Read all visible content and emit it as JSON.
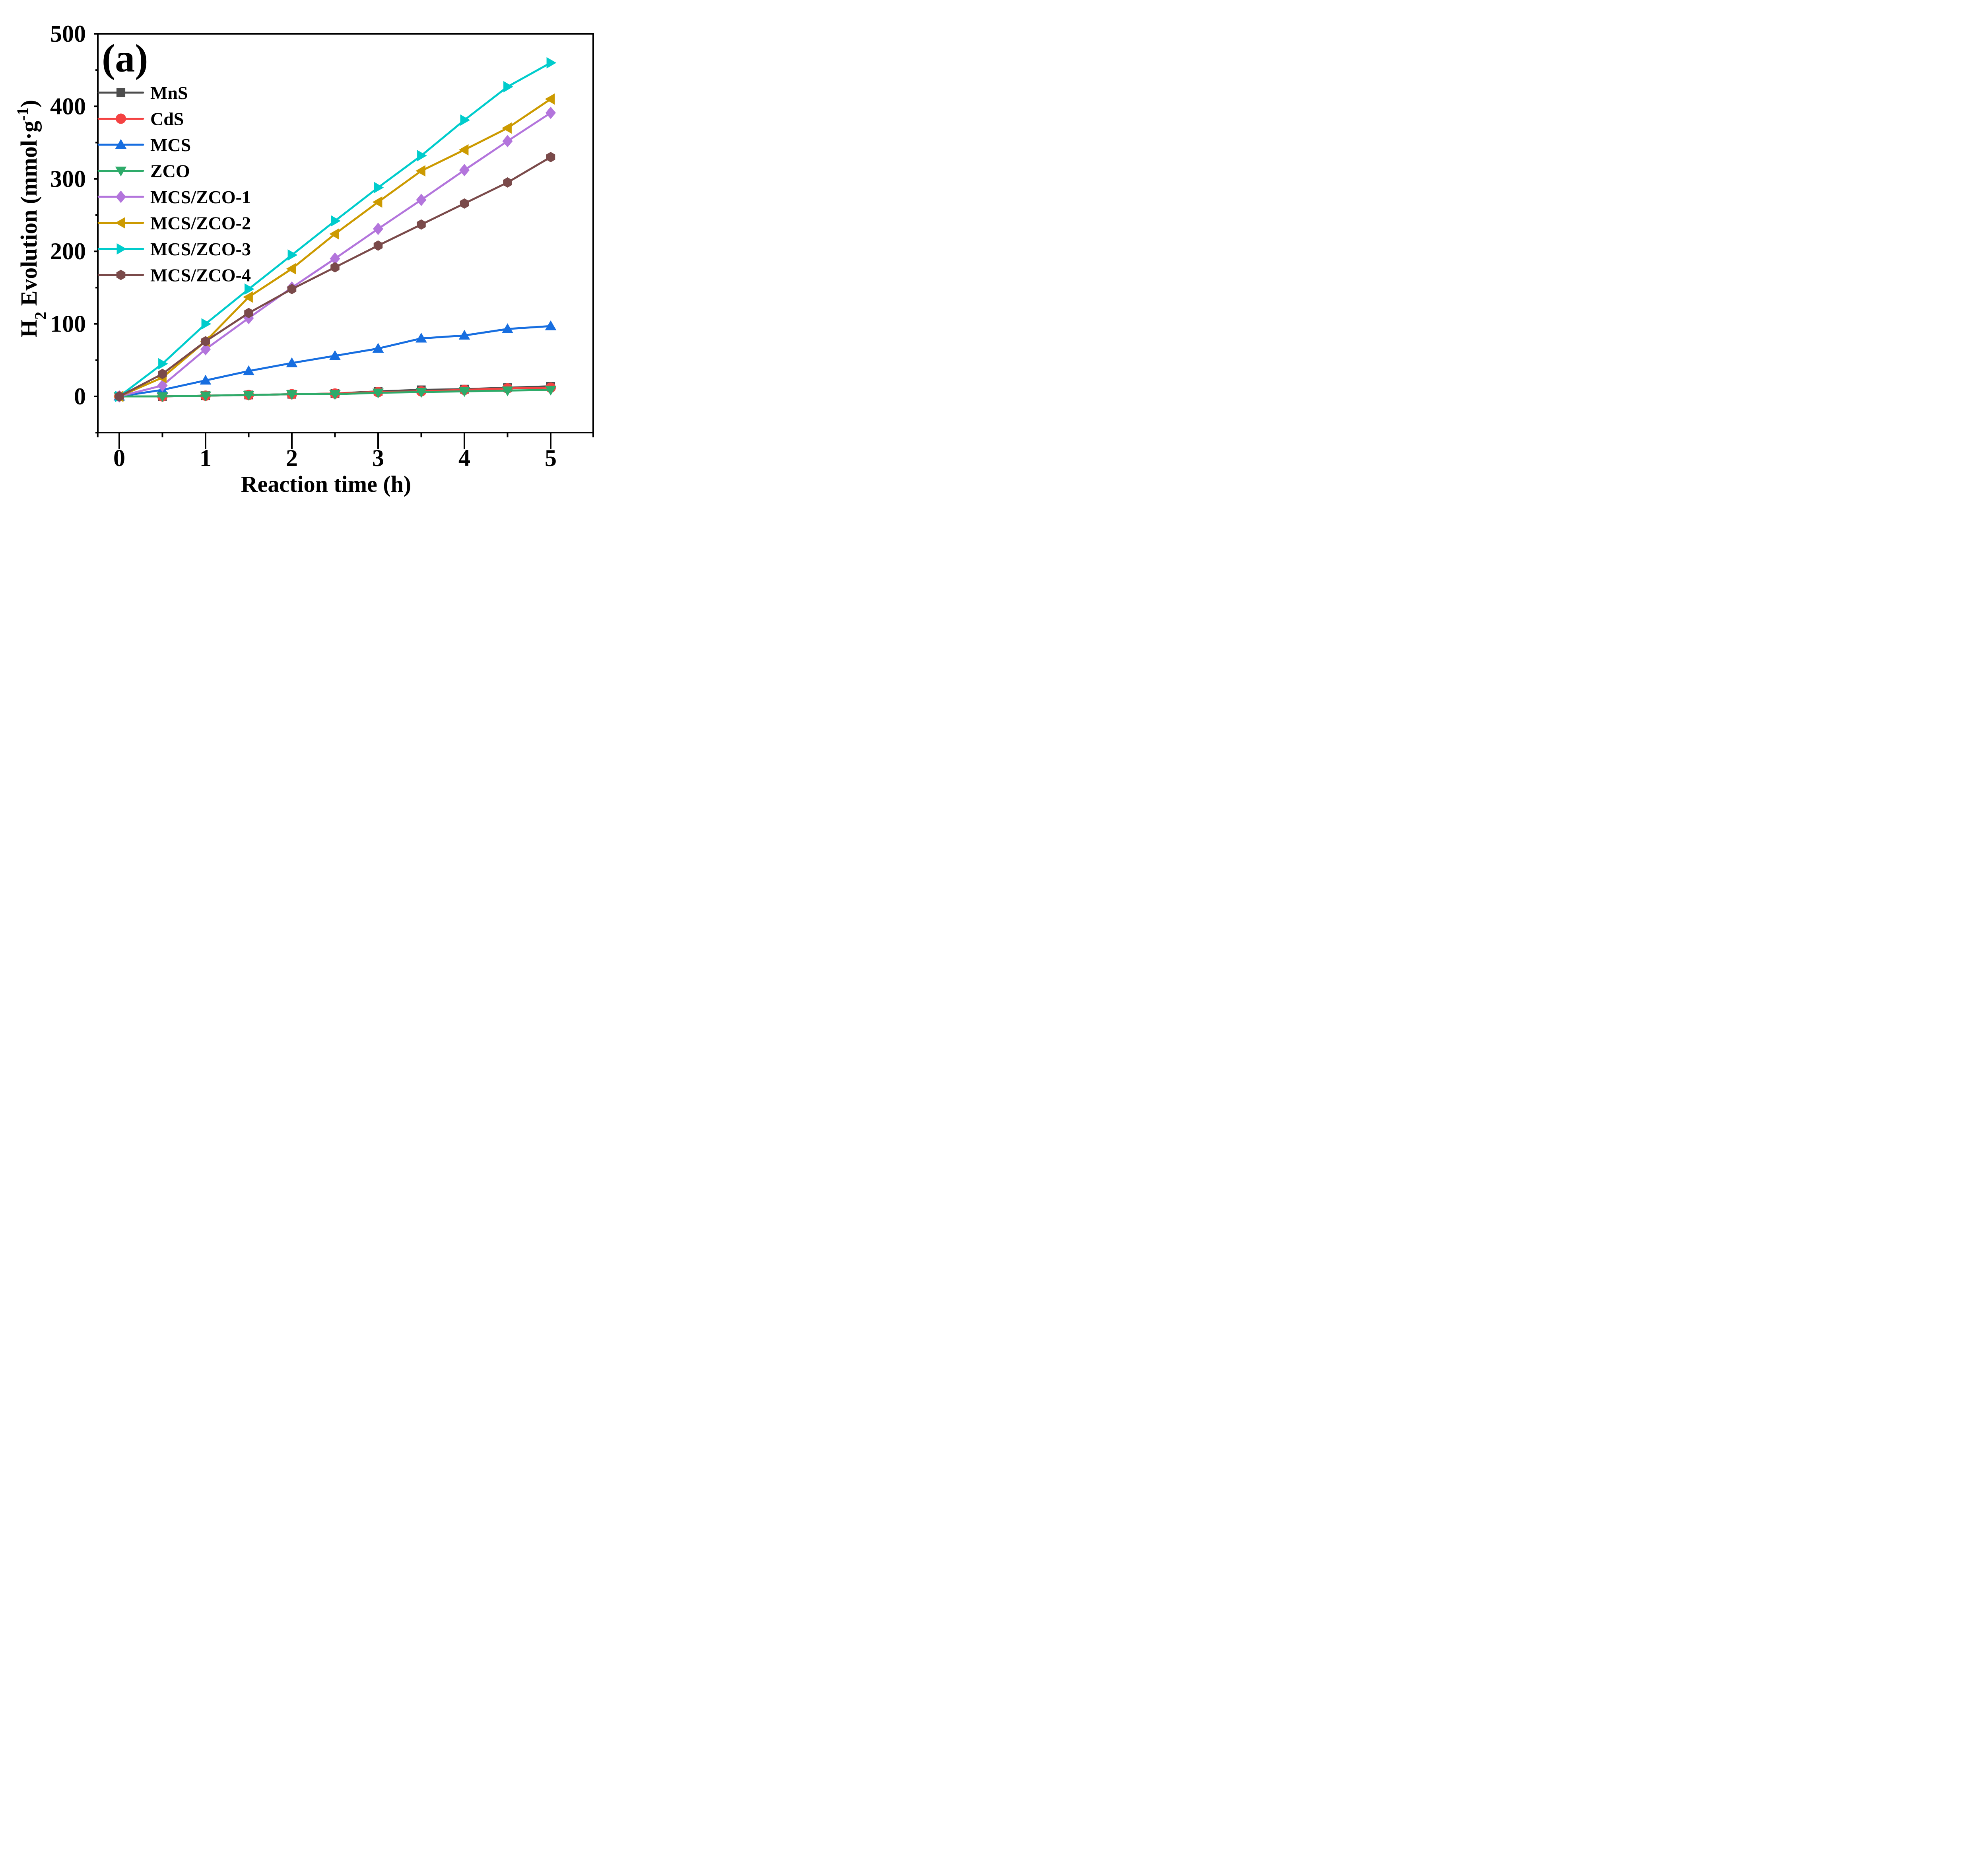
{
  "chart_data": {
    "type": "line",
    "title": "",
    "panel_label": "(a)",
    "xlabel": "Reaction time (h)",
    "ylabel": {
      "prefix": "H",
      "sub": "2",
      "main": " Evolution (mmol·g",
      "sup": "-1",
      "suffix": ")"
    },
    "xlim": [
      -0.25,
      5.5
    ],
    "ylim": [
      -50,
      500
    ],
    "xticks": [
      0,
      1,
      2,
      3,
      4,
      5
    ],
    "xtick_labels": [
      "0",
      "1",
      "2",
      "3",
      "4",
      "5"
    ],
    "yticks": [
      0,
      100,
      200,
      300,
      400,
      500
    ],
    "ytick_labels": [
      "0",
      "100",
      "200",
      "300",
      "400",
      "500"
    ],
    "grid": false,
    "legend_position": "top-left",
    "x": [
      0,
      0.5,
      1,
      1.5,
      2,
      2.5,
      3,
      3.5,
      4,
      4.5,
      5
    ],
    "series": [
      {
        "name": "MnS",
        "color": "#4d4d4d",
        "marker": "square",
        "values": [
          0,
          0,
          1,
          2,
          3,
          4,
          7,
          9,
          10,
          12,
          14
        ]
      },
      {
        "name": "CdS",
        "color": "#f44242",
        "marker": "circle",
        "values": [
          0,
          0,
          1,
          2,
          3,
          4,
          6,
          7,
          9,
          11,
          12
        ]
      },
      {
        "name": "MCS",
        "color": "#176ee0",
        "marker": "triangle-up",
        "values": [
          0,
          9,
          22,
          35,
          46,
          56,
          66,
          80,
          84,
          93,
          97
        ]
      },
      {
        "name": "ZCO",
        "color": "#2eab6a",
        "marker": "triangle-down",
        "values": [
          0,
          0,
          1,
          2,
          3,
          3,
          5,
          6,
          7,
          8,
          9
        ]
      },
      {
        "name": "MCS/ZCO-1",
        "color": "#b375dc",
        "marker": "diamond",
        "values": [
          0,
          15,
          65,
          108,
          150,
          190,
          231,
          271,
          312,
          352,
          391
        ]
      },
      {
        "name": "MCS/ZCO-2",
        "color": "#cc9a00",
        "marker": "triangle-left",
        "values": [
          0,
          26,
          76,
          137,
          176,
          224,
          268,
          311,
          340,
          370,
          410
        ]
      },
      {
        "name": "MCS/ZCO-3",
        "color": "#00cccc",
        "marker": "triangle-right",
        "values": [
          0,
          45,
          100,
          148,
          195,
          242,
          288,
          332,
          381,
          427,
          460
        ]
      },
      {
        "name": "MCS/ZCO-4",
        "color": "#7a4a4a",
        "marker": "hexagon",
        "values": [
          0,
          31,
          76,
          115,
          148,
          178,
          208,
          237,
          266,
          295,
          330
        ]
      }
    ]
  }
}
